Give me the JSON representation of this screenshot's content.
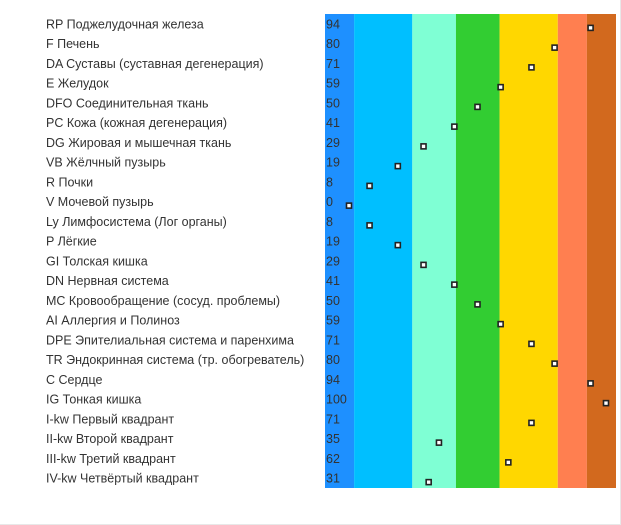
{
  "chart_data": {
    "type": "scatter",
    "xlim": [
      0,
      100
    ],
    "grid": false,
    "legend": "none",
    "rows": [
      {
        "label": "RP Поджелудочная железа",
        "value": 94
      },
      {
        "label": "F Печень",
        "value": 80
      },
      {
        "label": "DA Суставы (суставная дегенерация)",
        "value": 71
      },
      {
        "label": "E Желудок",
        "value": 59
      },
      {
        "label": "DFO Соединительная ткань",
        "value": 50
      },
      {
        "label": "PC Кожа (кожная дегенерация)",
        "value": 41
      },
      {
        "label": "DG Жировая и мышечная ткань",
        "value": 29
      },
      {
        "label": "VB Жёлчный пузырь",
        "value": 19
      },
      {
        "label": "R Почки",
        "value": 8
      },
      {
        "label": "V Мочевой пузырь",
        "value": 0
      },
      {
        "label": "Ly Лимфосистема (Лог органы)",
        "value": 8
      },
      {
        "label": "P Лёгкие",
        "value": 19
      },
      {
        "label": "GI Толская кишка",
        "value": 29
      },
      {
        "label": "DN Нервная система",
        "value": 41
      },
      {
        "label": "MC Кровообращение (сосуд. проблемы)",
        "value": 50
      },
      {
        "label": "AI Аллергия и Полиноз",
        "value": 59
      },
      {
        "label": "DPE Эпителиальная система и паренхима",
        "value": 71
      },
      {
        "label": "TR Эндокринная система (тр. обогреватель)",
        "value": 80
      },
      {
        "label": "C Сердце",
        "value": 94
      },
      {
        "label": "IG Тонкая кишка",
        "value": 100
      },
      {
        "label": "I-kw Первый квадрант",
        "value": 71
      },
      {
        "label": "II-kw Второй квадрант",
        "value": 35
      },
      {
        "label": "III-kw Третий квадрант",
        "value": 62
      },
      {
        "label": "IV-kw Четвёртый квадрант",
        "value": 31
      }
    ],
    "bands": [
      {
        "from": 0,
        "to": 10,
        "color": "#1E90FF"
      },
      {
        "from": 10,
        "to": 30,
        "color": "#00BFFF"
      },
      {
        "from": 30,
        "to": 45,
        "color": "#7FFFD4"
      },
      {
        "from": 45,
        "to": 60,
        "color": "#32CD32"
      },
      {
        "from": 60,
        "to": 80,
        "color": "#FFD700"
      },
      {
        "from": 80,
        "to": 90,
        "color": "#FF7F50"
      },
      {
        "from": 90,
        "to": 100,
        "color": "#D2691E"
      }
    ]
  }
}
